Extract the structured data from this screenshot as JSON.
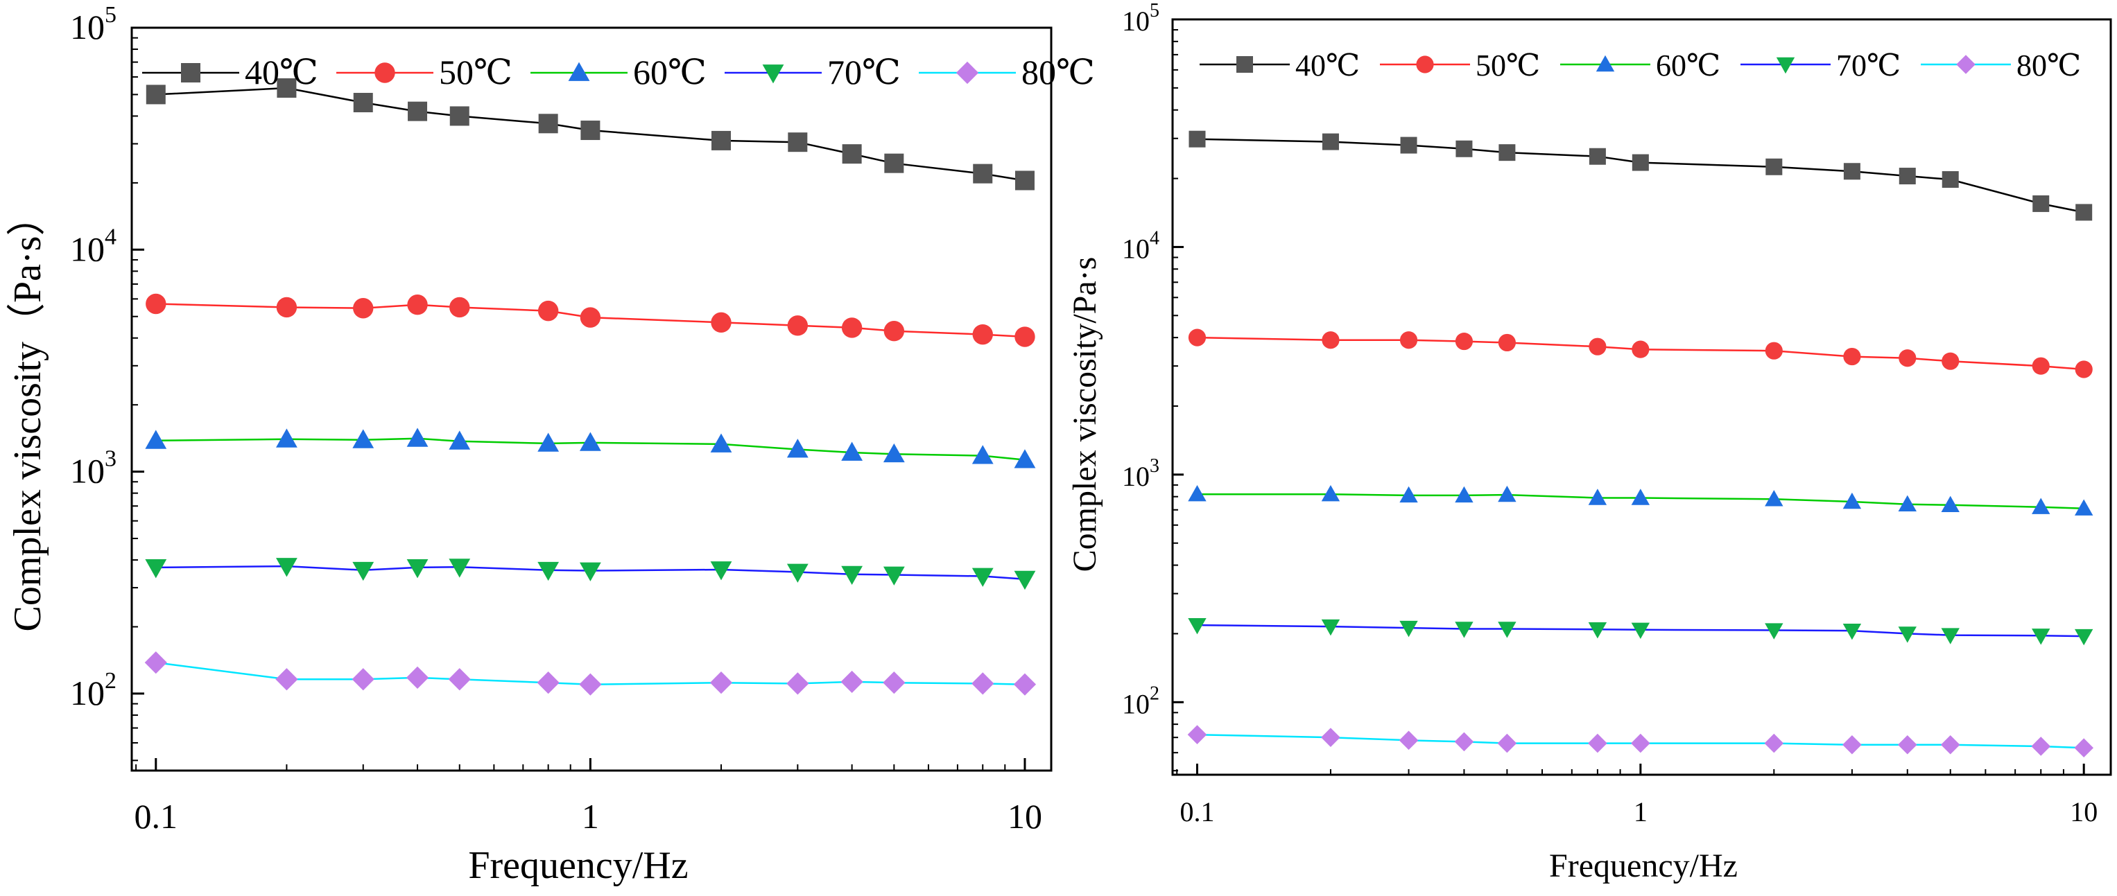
{
  "chart_data": [
    {
      "type": "line",
      "xscale": "log",
      "yscale": "log",
      "xlabel": "Frequency/Hz",
      "ylabel": "Complex viscosity（Pa·s）",
      "xlim": [
        0.088,
        11.5
      ],
      "ylim": [
        45,
        100000
      ],
      "xticks": [
        {
          "value": 0.1,
          "label": "0.1"
        },
        {
          "value": 1,
          "label": "1"
        },
        {
          "value": 10,
          "label": "10"
        }
      ],
      "yticks": [
        {
          "value": 100,
          "base": "10",
          "exp": "2"
        },
        {
          "value": 1000,
          "base": "10",
          "exp": "3"
        },
        {
          "value": 10000,
          "base": "10",
          "exp": "4"
        },
        {
          "value": 100000,
          "base": "10",
          "exp": "5"
        }
      ],
      "legend_position": "top",
      "x": [
        0.1,
        0.2,
        0.3,
        0.4,
        0.5,
        0.8,
        1,
        2,
        3,
        4,
        5,
        8,
        10
      ],
      "series": [
        {
          "name": "40℃",
          "color": "#000000",
          "marker_color": "#555555",
          "marker": "square",
          "values": [
            50000,
            53500,
            46000,
            42000,
            40000,
            37000,
            34500,
            31000,
            30500,
            27000,
            24500,
            22000,
            20500
          ]
        },
        {
          "name": "50℃",
          "color": "#ff2a2a",
          "marker_color": "#f23d3d",
          "marker": "circle",
          "values": [
            5700,
            5500,
            5450,
            5650,
            5500,
            5300,
            4950,
            4700,
            4550,
            4450,
            4300,
            4150,
            4050
          ]
        },
        {
          "name": "60℃",
          "color": "#00cc00",
          "marker_color": "#1f6fe0",
          "marker": "triangle-up",
          "values": [
            1380,
            1400,
            1390,
            1410,
            1370,
            1340,
            1350,
            1330,
            1260,
            1220,
            1200,
            1180,
            1130
          ]
        },
        {
          "name": "70℃",
          "color": "#1a1aff",
          "marker_color": "#12b04a",
          "marker": "triangle-down",
          "values": [
            370,
            375,
            360,
            370,
            372,
            360,
            358,
            362,
            353,
            345,
            343,
            338,
            328
          ]
        },
        {
          "name": "80℃",
          "color": "#00e5ff",
          "marker_color": "#c27de8",
          "marker": "diamond",
          "values": [
            138,
            116,
            116,
            118,
            116,
            112,
            110,
            112,
            111,
            113,
            112,
            111,
            110
          ]
        }
      ]
    },
    {
      "type": "line",
      "xscale": "log",
      "yscale": "log",
      "xlabel": "Frequency/Hz",
      "ylabel": "Complex viscosity/Pa·s",
      "xlim": [
        0.088,
        11.5
      ],
      "ylim": [
        48,
        100000
      ],
      "xticks": [
        {
          "value": 0.1,
          "label": "0.1"
        },
        {
          "value": 1,
          "label": "1"
        },
        {
          "value": 10,
          "label": "10"
        }
      ],
      "yticks": [
        {
          "value": 100,
          "base": "10",
          "exp": "2"
        },
        {
          "value": 1000,
          "base": "10",
          "exp": "3"
        },
        {
          "value": 10000,
          "base": "10",
          "exp": "4"
        },
        {
          "value": 100000,
          "base": "10",
          "exp": "5"
        }
      ],
      "legend_position": "top",
      "x": [
        0.1,
        0.2,
        0.3,
        0.4,
        0.5,
        0.8,
        1,
        2,
        3,
        4,
        5,
        8,
        10
      ],
      "series": [
        {
          "name": "40℃",
          "color": "#000000",
          "marker_color": "#555555",
          "marker": "square",
          "values": [
            29800,
            29000,
            28000,
            27000,
            26000,
            25000,
            23500,
            22500,
            21500,
            20500,
            19800,
            15500,
            14200
          ]
        },
        {
          "name": "50℃",
          "color": "#ff2a2a",
          "marker_color": "#f23d3d",
          "marker": "circle",
          "values": [
            4000,
            3900,
            3900,
            3850,
            3800,
            3650,
            3550,
            3500,
            3300,
            3250,
            3150,
            3000,
            2900
          ]
        },
        {
          "name": "60℃",
          "color": "#00cc00",
          "marker_color": "#1f6fe0",
          "marker": "triangle-up",
          "values": [
            820,
            820,
            810,
            810,
            815,
            790,
            790,
            780,
            760,
            740,
            735,
            720,
            710
          ]
        },
        {
          "name": "70℃",
          "color": "#1a1aff",
          "marker_color": "#12b04a",
          "marker": "triangle-down",
          "values": [
            218,
            215,
            212,
            210,
            210,
            209,
            208,
            207,
            206,
            200,
            197,
            196,
            195
          ]
        },
        {
          "name": "80℃",
          "color": "#00e5ff",
          "marker_color": "#c27de8",
          "marker": "diamond",
          "values": [
            72,
            70,
            68,
            67,
            66,
            66,
            66,
            66,
            65,
            65,
            65,
            64,
            63
          ]
        }
      ]
    }
  ]
}
